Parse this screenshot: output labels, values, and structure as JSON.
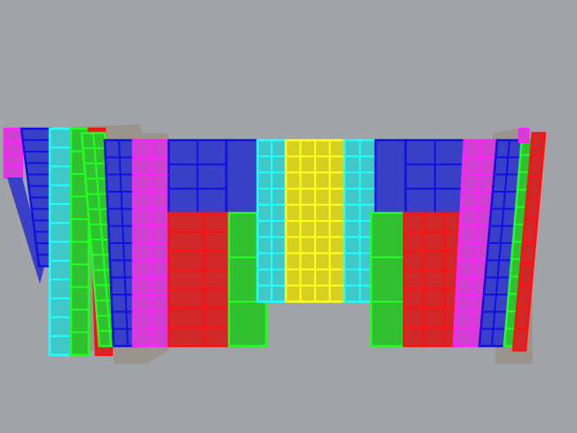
{
  "viewport": {
    "background": "#a0a4a9",
    "colors": {
      "blue": "#3a3fc8",
      "blue_edge": "#1010e0",
      "magenta": "#d040d0",
      "magenta_edge": "#ff20ff",
      "red": "#d02828",
      "red_edge": "#ff1010",
      "green": "#30c030",
      "green_edge": "#20ff20",
      "cyan": "#40c8c8",
      "cyan_edge": "#20ffff",
      "yellow": "#d8d020",
      "yellow_edge": "#ffff20",
      "backing": "#9a948c"
    }
  }
}
